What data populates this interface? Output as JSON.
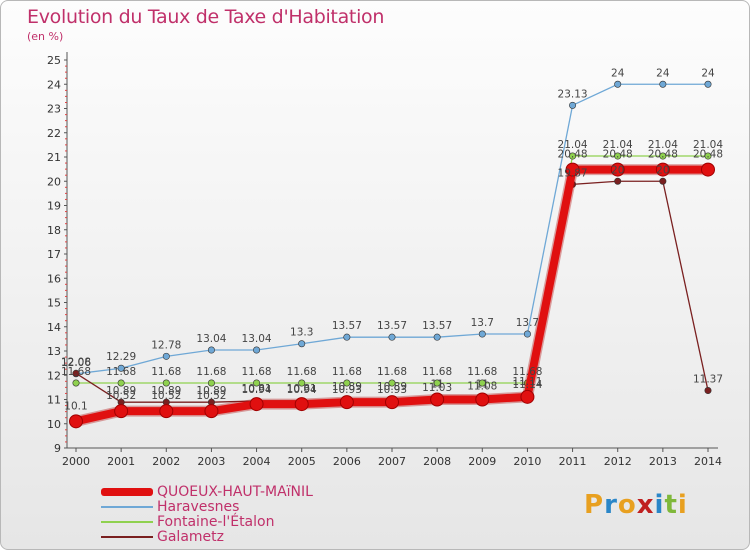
{
  "title": "Evolution du Taux de Taxe d'Habitation",
  "subtitle": "(en %)",
  "logo": {
    "text": "Proxiti",
    "letters": [
      "P",
      "r",
      "o",
      "x",
      "i",
      "t",
      "i"
    ],
    "colors": [
      "#e8a020",
      "#2a86c8",
      "#e8a020",
      "#c02020",
      "#2a86c8",
      "#7fb83a",
      "#e8a020"
    ]
  },
  "chart_data": {
    "type": "line",
    "title": "Evolution du Taux de Taxe d'Habitation",
    "ylabel": "(en %)",
    "xlabel": "",
    "ylim": [
      9,
      25
    ],
    "yticks": [
      9,
      10,
      11,
      12,
      13,
      14,
      15,
      16,
      17,
      18,
      19,
      20,
      21,
      22,
      23,
      24,
      25
    ],
    "categories": [
      "2000",
      "2001",
      "2002",
      "2003",
      "2004",
      "2005",
      "2006",
      "2007",
      "2008",
      "2009",
      "2010",
      "2011",
      "2012",
      "2013",
      "2014"
    ],
    "series": [
      {
        "name": "QUOEUX-HAUT-MAïNIL",
        "color": "#e01010",
        "style": "thick",
        "values": [
          10.1,
          10.52,
          10.52,
          10.52,
          10.81,
          10.81,
          10.89,
          10.89,
          11.0,
          11.0,
          11.11,
          20.48,
          20.48,
          20.48,
          20.48
        ],
        "labels": [
          "10.1",
          "10.52",
          "10.52",
          "10.52",
          "10.81",
          "10.81",
          "10.89",
          "10.89",
          "11",
          "11",
          "11.11",
          "20.48",
          "20.48",
          "20.48",
          "20.48"
        ]
      },
      {
        "name": "Haravesnes",
        "color": "#6fa8d6",
        "style": "thin",
        "values": [
          12.06,
          12.29,
          12.78,
          13.04,
          13.04,
          13.3,
          13.57,
          13.57,
          13.57,
          13.7,
          13.7,
          23.13,
          24,
          24,
          24
        ],
        "labels": [
          "12.06",
          "12.29",
          "12.78",
          "13.04",
          "13.04",
          "13.3",
          "13.57",
          "13.57",
          "13.57",
          "13.7",
          "13.7",
          "23.13",
          "24",
          "24",
          "24"
        ]
      },
      {
        "name": "Fontaine-l'Étalon",
        "color": "#8fd14f",
        "style": "thin",
        "values": [
          11.68,
          11.68,
          11.68,
          11.68,
          11.68,
          11.68,
          11.68,
          11.68,
          11.68,
          11.68,
          11.68,
          21.04,
          21.04,
          21.04,
          21.04
        ],
        "labels": [
          "11.68",
          "11.68",
          "11.68",
          "11.68",
          "11.68",
          "11.68",
          "11.68",
          "11.68",
          "11.68",
          "11.68",
          "11.68",
          "21.04",
          "21.04",
          "21.04",
          "21.04"
        ]
      },
      {
        "name": "Galametz",
        "color": "#7a2020",
        "style": "thin",
        "values": [
          12.08,
          10.89,
          10.89,
          10.89,
          10.94,
          10.94,
          10.93,
          10.93,
          11.03,
          11.08,
          11.14,
          19.87,
          20,
          20,
          11.37
        ],
        "labels": [
          "12.08",
          "10.89",
          "10.89",
          "10.89",
          "10.94",
          "10.94",
          "10.93",
          "10.93",
          "11.03",
          "11.08",
          "11.14",
          "19.87",
          "20",
          "20",
          "11.37"
        ]
      }
    ],
    "grid": false,
    "legend": "bottom-left"
  }
}
